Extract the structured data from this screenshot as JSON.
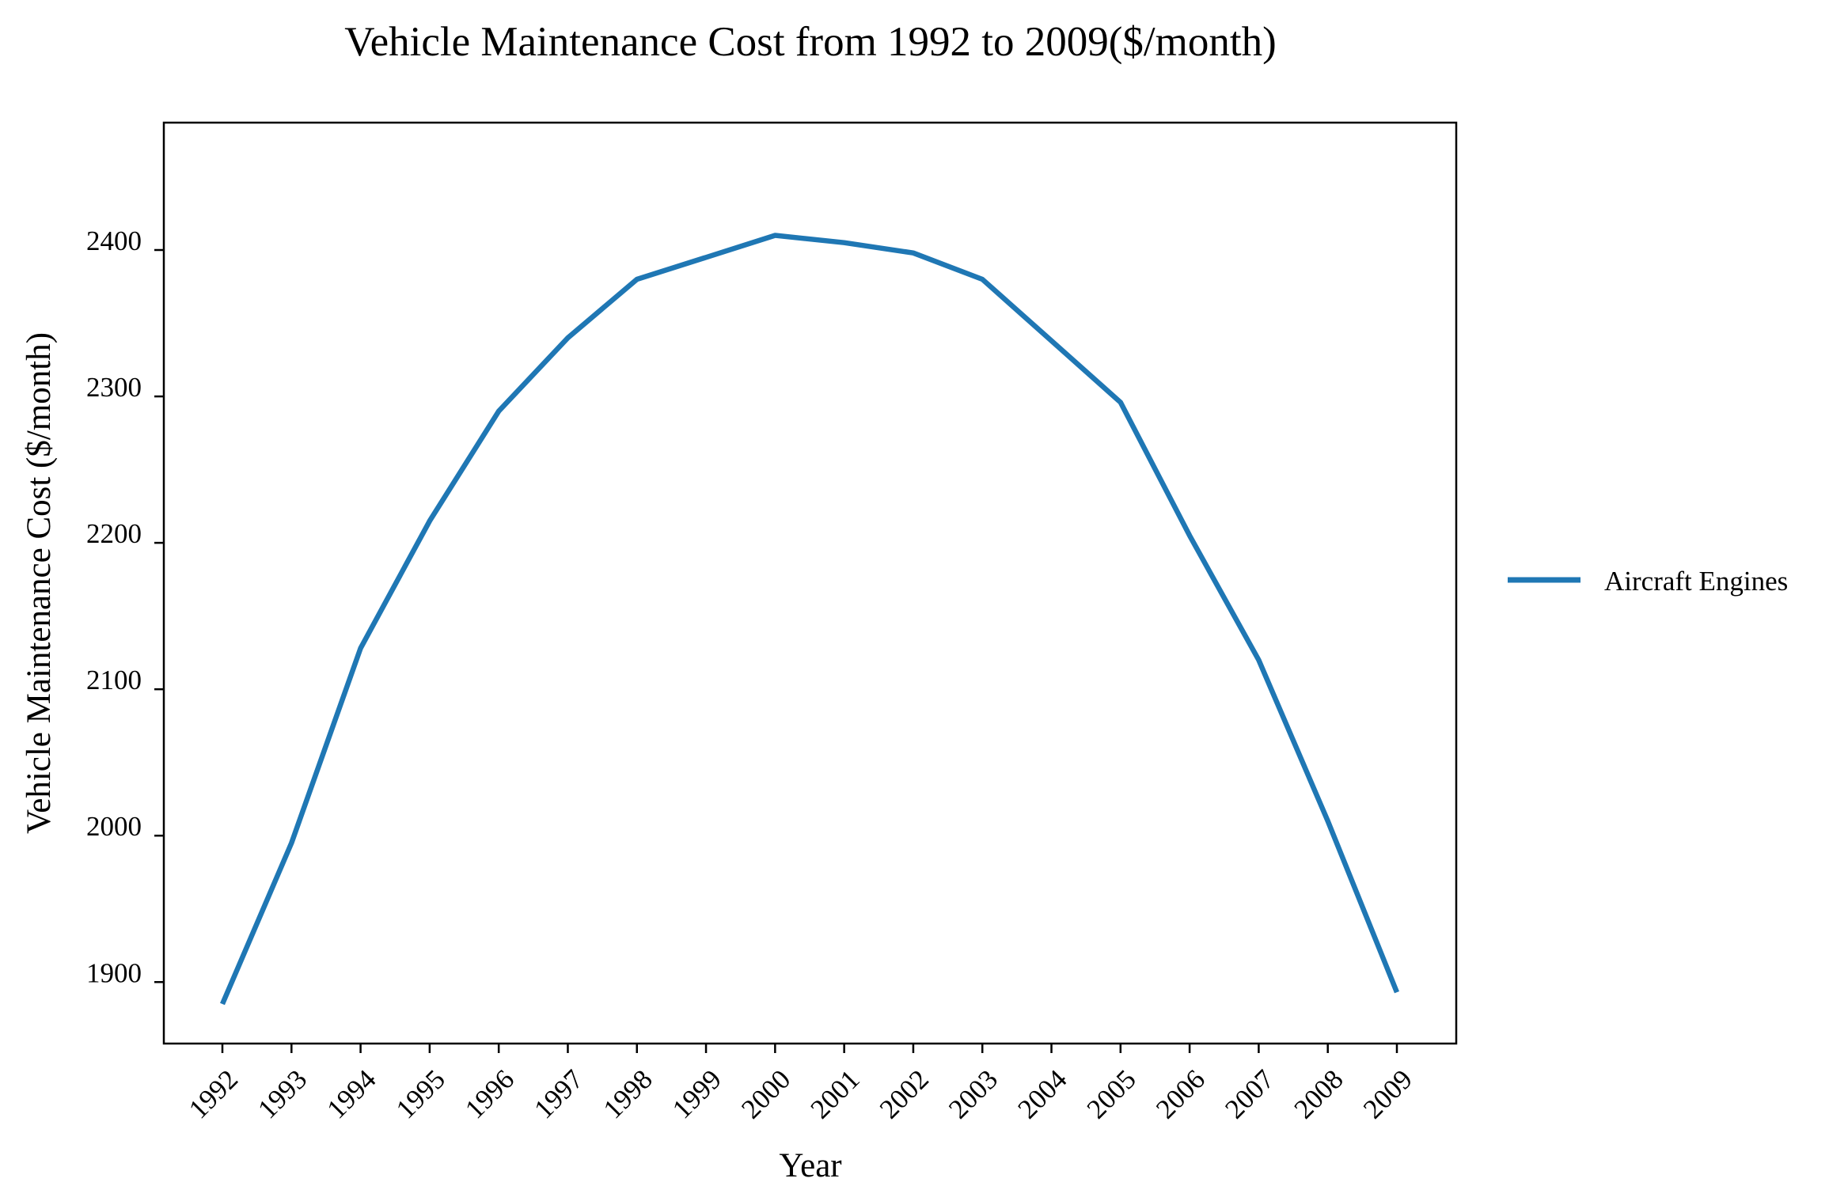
{
  "chart_data": {
    "type": "line",
    "title": "Vehicle Maintenance Cost from 1992 to 2009($/month)",
    "xlabel": "Year",
    "ylabel": "Vehicle Maintenance Cost ($/month)",
    "x": [
      "1992",
      "1993",
      "1994",
      "1995",
      "1996",
      "1997",
      "1998",
      "1999",
      "2000",
      "2001",
      "2002",
      "2003",
      "2004",
      "2005",
      "2006",
      "2007",
      "2008",
      "2009"
    ],
    "yticks": [
      1900,
      2000,
      2100,
      2200,
      2300,
      2400
    ],
    "ylim": [
      1858,
      2487
    ],
    "grid": false,
    "legend_position": "right",
    "series": [
      {
        "name": "Aircraft Engines",
        "color": "#1f77b4",
        "values": [
          1885,
          1995,
          2128,
          2215,
          2290,
          2340,
          2380,
          2395,
          2410,
          2405,
          2398,
          2380,
          2338,
          2296,
          2205,
          2120,
          2010,
          1893
        ]
      }
    ]
  }
}
